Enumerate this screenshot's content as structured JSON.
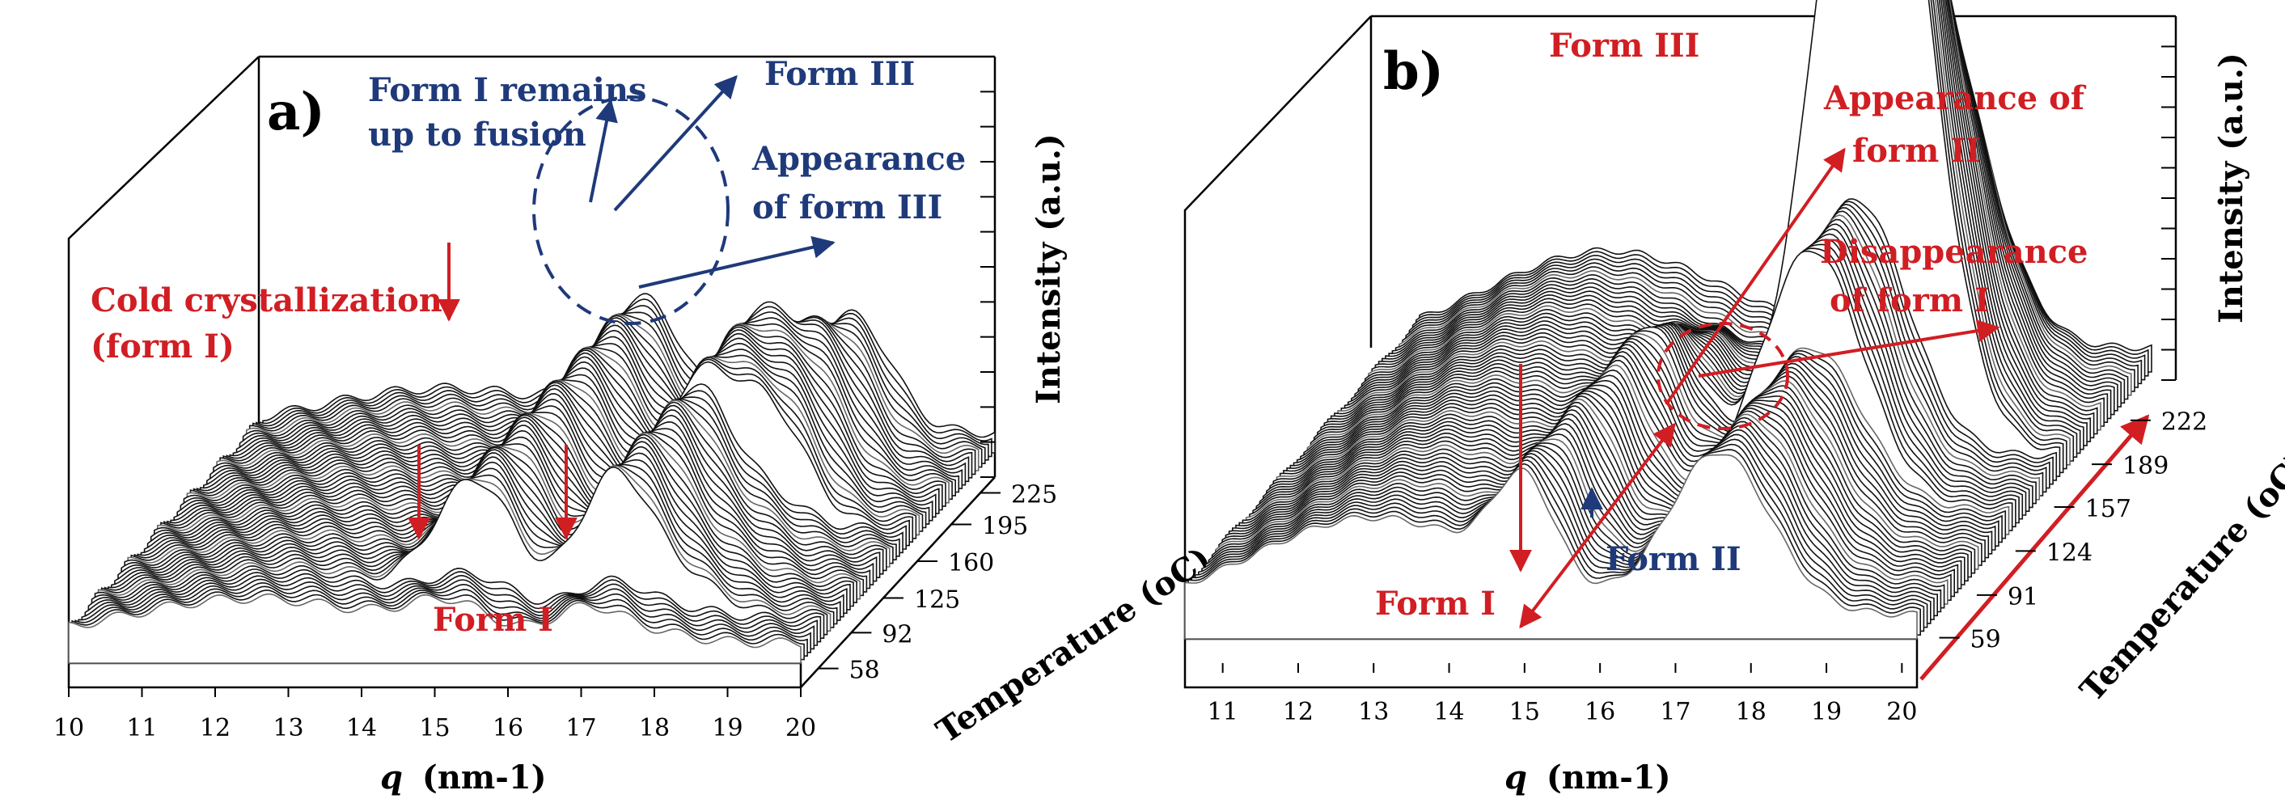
{
  "chart_data": [
    {
      "type": "waterfall",
      "panel_label": "a)",
      "xlabel_var": "q",
      "xlabel_unit": "(nm-1)",
      "ylabel": "Temperature (oC)",
      "zlabel": "Intensity (a.u.)",
      "x_ticks": [
        "10",
        "11",
        "12",
        "13",
        "14",
        "15",
        "16",
        "17",
        "18",
        "19",
        "20"
      ],
      "y_ticks": [
        "58",
        "92",
        "125",
        "160",
        "195",
        "225"
      ],
      "x_range": [
        10,
        20
      ],
      "y_range": [
        40,
        240
      ],
      "peaks_q": [
        15.2,
        17.1,
        18.1
      ],
      "annotations": [
        {
          "text": "Form I remains",
          "color": "#1f3a7a"
        },
        {
          "text": "up to fusion",
          "color": "#1f3a7a"
        },
        {
          "text": "Form III",
          "color": "#1f3a7a"
        },
        {
          "text": "Appearance",
          "color": "#1f3a7a"
        },
        {
          "text": "of form III",
          "color": "#1f3a7a"
        },
        {
          "text": "Cold crystallization",
          "color": "#d11e23"
        },
        {
          "text": "(form I)",
          "color": "#d11e23"
        },
        {
          "text": "Form I",
          "color": "#d11e23"
        }
      ]
    },
    {
      "type": "waterfall",
      "panel_label": "b)",
      "xlabel_var": "q",
      "xlabel_unit": "(nm-1)",
      "ylabel": "Temperature (oC)",
      "zlabel": "Intensity (a.u.)",
      "x_ticks": [
        "11",
        "12",
        "13",
        "14",
        "15",
        "16",
        "17",
        "18",
        "19",
        "20"
      ],
      "y_ticks": [
        "59",
        "91",
        "124",
        "157",
        "189",
        "222"
      ],
      "x_range": [
        10.5,
        20.2
      ],
      "y_range": [
        40,
        240
      ],
      "peaks_q": [
        15.0,
        17.5,
        17.8
      ],
      "annotations": [
        {
          "text": "Form III",
          "color": "#d11e23"
        },
        {
          "text": "Appearance of",
          "color": "#d11e23"
        },
        {
          "text": "form II",
          "color": "#d11e23"
        },
        {
          "text": "Disappearance",
          "color": "#d11e23"
        },
        {
          "text": "of form I",
          "color": "#d11e23"
        },
        {
          "text": "Form I",
          "color": "#d11e23"
        },
        {
          "text": "Form II",
          "color": "#1f3a7a"
        }
      ]
    }
  ]
}
